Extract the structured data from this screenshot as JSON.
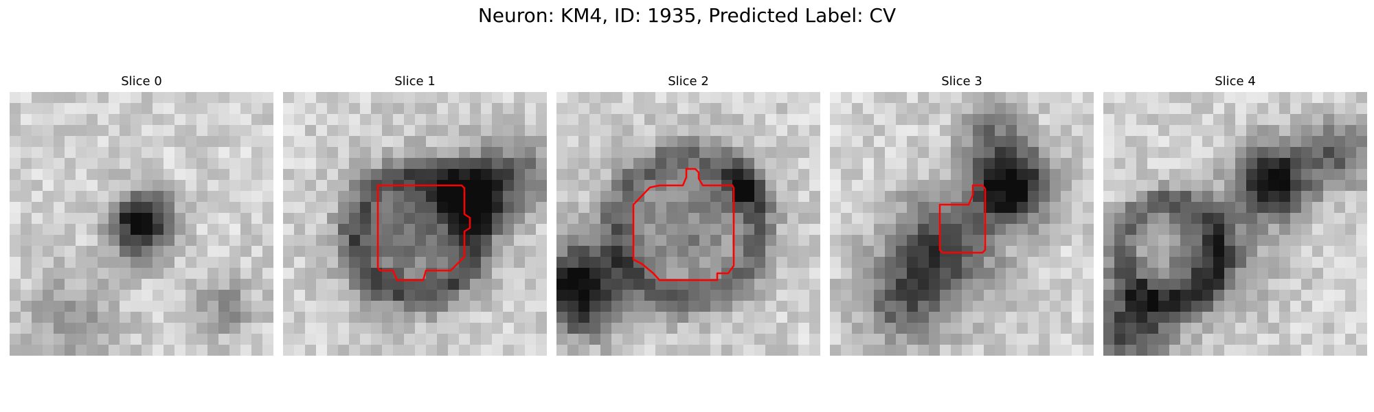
{
  "figure": {
    "title": "Neuron: KM4, ID: 1935, Predicted Label: CV"
  },
  "panels": [
    {
      "title": "Slice 0",
      "has_contour": false
    },
    {
      "title": "Slice 1",
      "has_contour": true
    },
    {
      "title": "Slice 2",
      "has_contour": true
    },
    {
      "title": "Slice 3",
      "has_contour": true
    },
    {
      "title": "Slice 4",
      "has_contour": false
    }
  ],
  "colors": {
    "contour": "#ff0000",
    "background": "#ffffff"
  },
  "grid": {
    "cells_per_side": 24
  }
}
